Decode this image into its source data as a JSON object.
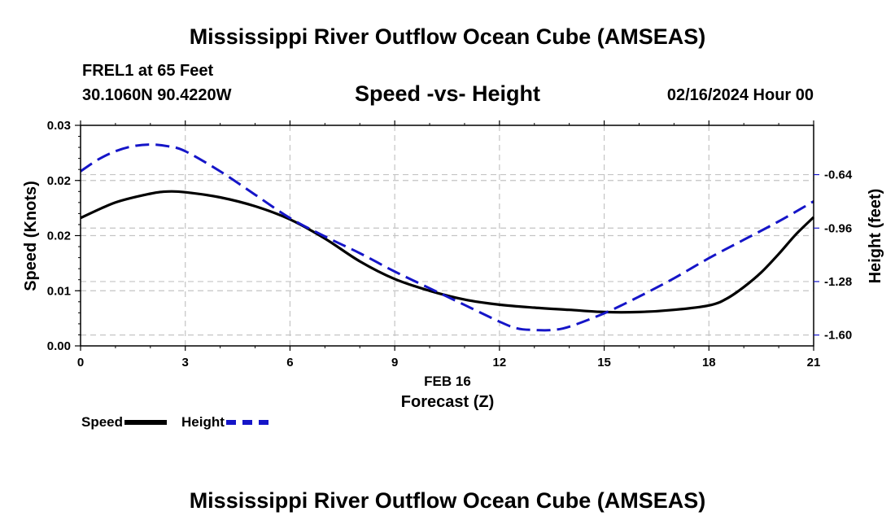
{
  "header": {
    "title": "Mississippi River Outflow Ocean Cube (AMSEAS)",
    "station": "FREL1 at 65 Feet",
    "coordinates": "30.1060N  90.4220W",
    "subtitle": "Speed -vs- Height",
    "datetime": "02/16/2024 Hour 00"
  },
  "footer": {
    "title": "Mississippi River Outflow Ocean Cube (AMSEAS)"
  },
  "legend": {
    "speed_label": "Speed",
    "height_label": "Height"
  },
  "chart_data": {
    "type": "line",
    "title": "Speed -vs- Height",
    "xlabel": "Forecast (Z)",
    "xlabel_date": "FEB 16",
    "ylabel": "Speed (Knots)",
    "y2label": "Height (feet)",
    "xlim": [
      0,
      21
    ],
    "ylim": [
      0,
      0.03
    ],
    "y2lim": [
      -1.665,
      -0.345
    ],
    "x_ticks": [
      0,
      3,
      6,
      9,
      12,
      15,
      18,
      21
    ],
    "x_tick_labels": [
      "0",
      "3",
      "6",
      "9",
      "12",
      "15",
      "18",
      "21"
    ],
    "y_ticks": [
      0,
      0.0075,
      0.015,
      0.0225,
      0.03
    ],
    "y_tick_labels": [
      "0.00",
      "0.01",
      "0.02",
      "0.02",
      "0.03"
    ],
    "y2_ticks": [
      -0.64,
      -0.96,
      -1.28,
      -1.6
    ],
    "y2_tick_labels": [
      "-0.64",
      "-0.96",
      "-1.28",
      "-1.60"
    ],
    "grid": true,
    "legend_position": "bottom-left",
    "series": [
      {
        "name": "Speed",
        "axis": "left",
        "color": "#000000",
        "style": "solid",
        "x": [
          0,
          1,
          2,
          2.5,
          3,
          4,
          5,
          6,
          7,
          8,
          9,
          10,
          11,
          12,
          13,
          14,
          15,
          16,
          17,
          18,
          18.5,
          19,
          19.5,
          20,
          20.5,
          21
        ],
        "values": [
          0.0174,
          0.0195,
          0.0207,
          0.021,
          0.0209,
          0.0202,
          0.019,
          0.0172,
          0.0146,
          0.0115,
          0.0091,
          0.0075,
          0.0063,
          0.0056,
          0.0052,
          0.0049,
          0.0046,
          0.0046,
          0.0049,
          0.0055,
          0.0064,
          0.008,
          0.01,
          0.0125,
          0.0152,
          0.0175
        ]
      },
      {
        "name": "Height",
        "axis": "right",
        "color": "#1515c8",
        "style": "dashed",
        "x": [
          0,
          0.5,
          1,
          1.5,
          2,
          2.5,
          3,
          4,
          5,
          6,
          7,
          8,
          9,
          10,
          11,
          12,
          12.5,
          13,
          13.5,
          14,
          15,
          16,
          17,
          18,
          19,
          20,
          21
        ],
        "values": [
          -0.62,
          -0.55,
          -0.5,
          -0.47,
          -0.46,
          -0.47,
          -0.5,
          -0.62,
          -0.76,
          -0.9,
          -1.01,
          -1.11,
          -1.22,
          -1.32,
          -1.42,
          -1.52,
          -1.56,
          -1.57,
          -1.57,
          -1.55,
          -1.47,
          -1.37,
          -1.26,
          -1.14,
          -1.03,
          -0.92,
          -0.8
        ]
      }
    ]
  }
}
